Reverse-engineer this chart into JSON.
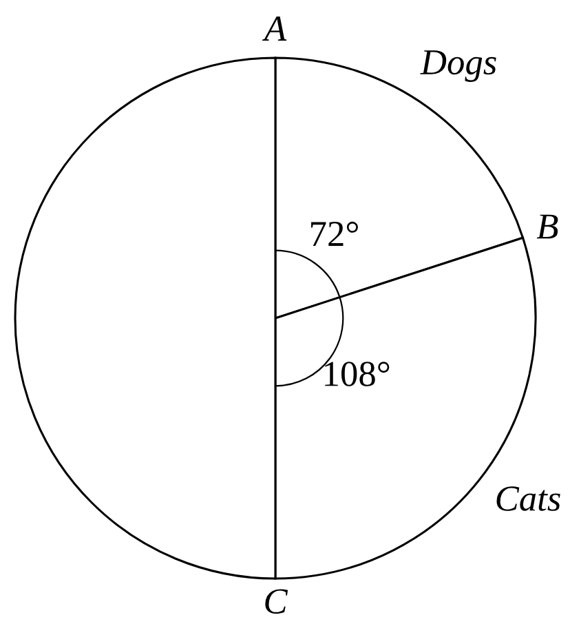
{
  "chart_data": {
    "type": "pie",
    "categories": [
      "Dogs",
      "Cats",
      null
    ],
    "values": [
      72,
      108,
      180
    ],
    "colors": [
      "#ffffff",
      "#ffffff",
      "#ffffff"
    ],
    "value_labels": [
      "72°",
      "108°",
      null
    ],
    "annotations": [
      "A",
      "B",
      "C"
    ]
  }
}
